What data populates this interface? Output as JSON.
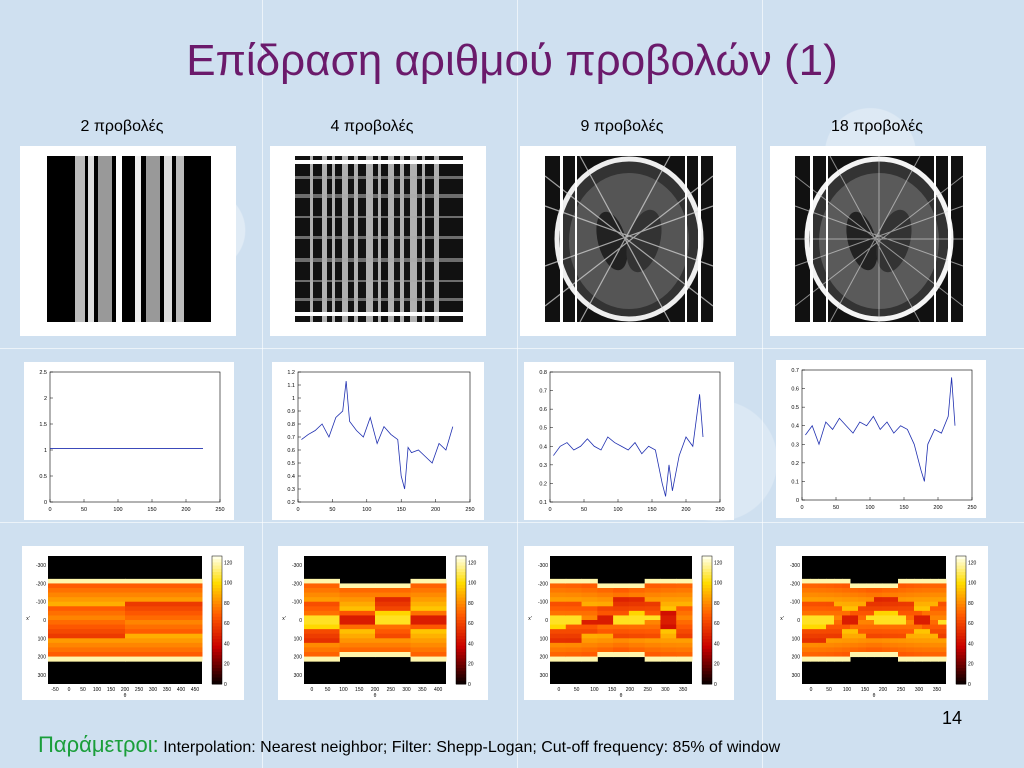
{
  "slide": {
    "title": "Επίδραση αριθμού προβολών (1)",
    "page_number": "14",
    "footer_key": "Παράμετροι:",
    "footer_value": "Interpolation: Nearest neighbor; Filter: Shepp-Logan; Cut-off frequency: 85% of window"
  },
  "columns": [
    {
      "label": "2 προβολές",
      "projections": 2
    },
    {
      "label": "4 προβολές",
      "projections": 4
    },
    {
      "label": "9 προβολές",
      "projections": 9
    },
    {
      "label": "18 προβολές",
      "projections": 18
    }
  ],
  "chart_data": [
    {
      "type": "line",
      "xticks": [
        "0",
        "50",
        "100",
        "150",
        "200",
        "250"
      ],
      "yticks": [
        "0",
        "0.5",
        "1",
        "1.5",
        "2",
        "2.5"
      ],
      "xlim": [
        0,
        250
      ],
      "ylim": [
        0,
        2.5
      ],
      "series": [
        {
          "x": [
            0,
            225
          ],
          "y": [
            1.03,
            1.03
          ]
        }
      ]
    },
    {
      "type": "line",
      "xticks": [
        "0",
        "50",
        "100",
        "150",
        "200",
        "250"
      ],
      "yticks": [
        "0.2",
        "0.3",
        "0.4",
        "0.5",
        "0.6",
        "0.7",
        "0.8",
        "0.9",
        "1",
        "1.1",
        "1.2"
      ],
      "xlim": [
        0,
        250
      ],
      "ylim": [
        0.2,
        1.2
      ],
      "series": [
        {
          "x": [
            5,
            15,
            25,
            35,
            45,
            55,
            65,
            70,
            75,
            85,
            95,
            105,
            115,
            125,
            135,
            145,
            150,
            155,
            160,
            165,
            175,
            185,
            195,
            205,
            215,
            225
          ],
          "y": [
            0.68,
            0.72,
            0.75,
            0.8,
            0.7,
            0.85,
            0.9,
            1.13,
            0.82,
            0.75,
            0.7,
            0.85,
            0.65,
            0.78,
            0.72,
            0.68,
            0.4,
            0.3,
            0.62,
            0.58,
            0.6,
            0.55,
            0.5,
            0.65,
            0.6,
            0.78
          ]
        }
      ]
    },
    {
      "type": "line",
      "xticks": [
        "0",
        "50",
        "100",
        "150",
        "200",
        "250"
      ],
      "yticks": [
        "0.1",
        "0.2",
        "0.3",
        "0.4",
        "0.5",
        "0.6",
        "0.7",
        "0.8"
      ],
      "xlim": [
        0,
        250
      ],
      "ylim": [
        0.1,
        0.8
      ],
      "series": [
        {
          "x": [
            5,
            15,
            25,
            35,
            45,
            55,
            65,
            75,
            85,
            95,
            105,
            115,
            125,
            135,
            145,
            155,
            165,
            170,
            175,
            180,
            190,
            200,
            210,
            220,
            225
          ],
          "y": [
            0.35,
            0.4,
            0.42,
            0.38,
            0.4,
            0.44,
            0.4,
            0.38,
            0.45,
            0.42,
            0.4,
            0.38,
            0.42,
            0.36,
            0.4,
            0.38,
            0.2,
            0.13,
            0.3,
            0.16,
            0.35,
            0.45,
            0.4,
            0.68,
            0.45
          ]
        }
      ]
    },
    {
      "type": "line",
      "xticks": [
        "0",
        "50",
        "100",
        "150",
        "200",
        "250"
      ],
      "yticks": [
        "0",
        "0.1",
        "0.2",
        "0.3",
        "0.4",
        "0.5",
        "0.6",
        "0.7"
      ],
      "xlim": [
        0,
        250
      ],
      "ylim": [
        0,
        0.7
      ],
      "series": [
        {
          "x": [
            5,
            15,
            25,
            35,
            45,
            55,
            65,
            75,
            85,
            95,
            105,
            115,
            125,
            135,
            145,
            155,
            165,
            175,
            180,
            185,
            195,
            205,
            215,
            220,
            225
          ],
          "y": [
            0.35,
            0.4,
            0.3,
            0.42,
            0.38,
            0.44,
            0.4,
            0.36,
            0.42,
            0.4,
            0.45,
            0.38,
            0.42,
            0.36,
            0.4,
            0.38,
            0.3,
            0.16,
            0.1,
            0.3,
            0.38,
            0.36,
            0.45,
            0.66,
            0.4
          ]
        }
      ]
    },
    {
      "type": "heatmap",
      "xticks": [
        "-50",
        "0",
        "50",
        "100",
        "150",
        "200",
        "250",
        "300",
        "350",
        "400",
        "450"
      ],
      "yticks": [
        "-300",
        "-200",
        "-100",
        "0",
        "100",
        "200",
        "300"
      ],
      "ylabel": "x'",
      "xlabel": "θ",
      "cbticks": [
        "0",
        "20",
        "40",
        "60",
        "80",
        "100",
        "120"
      ]
    },
    {
      "type": "heatmap",
      "xticks": [
        "0",
        "50",
        "100",
        "150",
        "200",
        "250",
        "300",
        "350",
        "400"
      ],
      "yticks": [
        "-300",
        "-200",
        "-100",
        "0",
        "100",
        "200",
        "300"
      ],
      "ylabel": "x'",
      "xlabel": "θ",
      "cbticks": [
        "0",
        "20",
        "40",
        "60",
        "80",
        "100",
        "120"
      ]
    },
    {
      "type": "heatmap",
      "xticks": [
        "0",
        "50",
        "100",
        "150",
        "200",
        "250",
        "300",
        "350"
      ],
      "yticks": [
        "-300",
        "-200",
        "-100",
        "0",
        "100",
        "200",
        "300"
      ],
      "ylabel": "x'",
      "xlabel": "θ",
      "cbticks": [
        "0",
        "20",
        "40",
        "60",
        "80",
        "100",
        "120"
      ]
    },
    {
      "type": "heatmap",
      "xticks": [
        "0",
        "50",
        "100",
        "150",
        "200",
        "250",
        "300",
        "350"
      ],
      "yticks": [
        "-300",
        "-200",
        "-100",
        "0",
        "100",
        "200",
        "300"
      ],
      "ylabel": "x'",
      "xlabel": "θ",
      "cbticks": [
        "0",
        "20",
        "40",
        "60",
        "80",
        "100",
        "120"
      ]
    }
  ]
}
